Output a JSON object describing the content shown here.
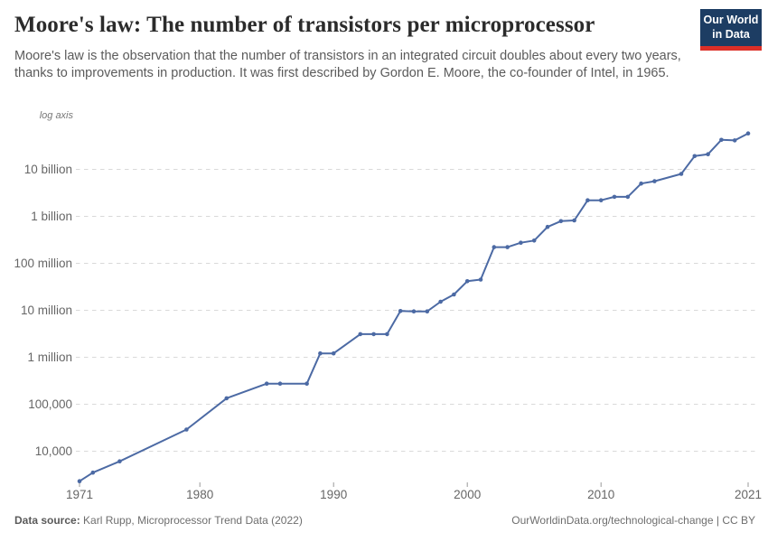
{
  "header": {
    "title": "Moore's law: The number of transistors per microprocessor",
    "subtitle": "Moore's law is the observation that the number of transistors in an integrated circuit doubles about every two years, thanks to improvements in production. It was first described by Gordon E. Moore, the co-founder of Intel, in 1965.",
    "logo": {
      "line1": "Our World",
      "line2": "in Data",
      "bg_color": "#1d3d63",
      "stripe_color": "#dc2f27"
    }
  },
  "chart_data": {
    "type": "line",
    "title": "Moore's law: The number of transistors per microprocessor",
    "log_axis_label": "log axis",
    "y_scale": "log",
    "grid": "horizontal-dashed",
    "legend": "none",
    "x_range": [
      1971,
      2021
    ],
    "y_range": [
      2300,
      58200000000
    ],
    "x_ticks": [
      1971,
      1980,
      1990,
      2000,
      2010,
      2021
    ],
    "y_ticks": [
      {
        "label": "10 billion",
        "value": 10000000000
      },
      {
        "label": "1 billion",
        "value": 1000000000
      },
      {
        "label": "100 million",
        "value": 100000000
      },
      {
        "label": "10 million",
        "value": 10000000
      },
      {
        "label": "1 million",
        "value": 1000000
      },
      {
        "label": "100,000",
        "value": 100000
      },
      {
        "label": "10,000",
        "value": 10000
      }
    ],
    "series": [
      {
        "name": "Transistors per microprocessor",
        "color": "#4c6aa4",
        "points": [
          [
            1971,
            2300
          ],
          [
            1972,
            3500
          ],
          [
            1974,
            6100
          ],
          [
            1979,
            29000
          ],
          [
            1982,
            134000
          ],
          [
            1985,
            274000
          ],
          [
            1986,
            274000
          ],
          [
            1988,
            274000
          ],
          [
            1989,
            1210000
          ],
          [
            1990,
            1210000
          ],
          [
            1992,
            3100000
          ],
          [
            1993,
            3100000
          ],
          [
            1994,
            3100000
          ],
          [
            1995,
            9650000
          ],
          [
            1996,
            9500000
          ],
          [
            1997,
            9500000
          ],
          [
            1998,
            15200000
          ],
          [
            1999,
            21700000
          ],
          [
            2000,
            41700000
          ],
          [
            2001,
            45000000
          ],
          [
            2002,
            221000000
          ],
          [
            2003,
            221000000
          ],
          [
            2004,
            274000000
          ],
          [
            2005,
            305000000
          ],
          [
            2006,
            596000000
          ],
          [
            2007,
            790000000
          ],
          [
            2008,
            820000000
          ],
          [
            2009,
            2200000000
          ],
          [
            2010,
            2200000000
          ],
          [
            2011,
            2600000000
          ],
          [
            2012,
            2600000000
          ],
          [
            2013,
            5000000000
          ],
          [
            2014,
            5600000000
          ],
          [
            2016,
            8000000000
          ],
          [
            2017,
            19200000000
          ],
          [
            2018,
            21000000000
          ],
          [
            2019,
            42500000000
          ],
          [
            2020,
            41500000000
          ],
          [
            2021,
            58200000000
          ]
        ]
      }
    ],
    "style": {
      "grid_color": "#d9d9d9",
      "axis_label_color": "#666666",
      "tick_color": "#999999"
    }
  },
  "footer": {
    "source_label": "Data source:",
    "source_text": " Karl Rupp, Microprocessor Trend Data (2022)",
    "link_text": "OurWorldinData.org/technological-change | CC BY"
  }
}
